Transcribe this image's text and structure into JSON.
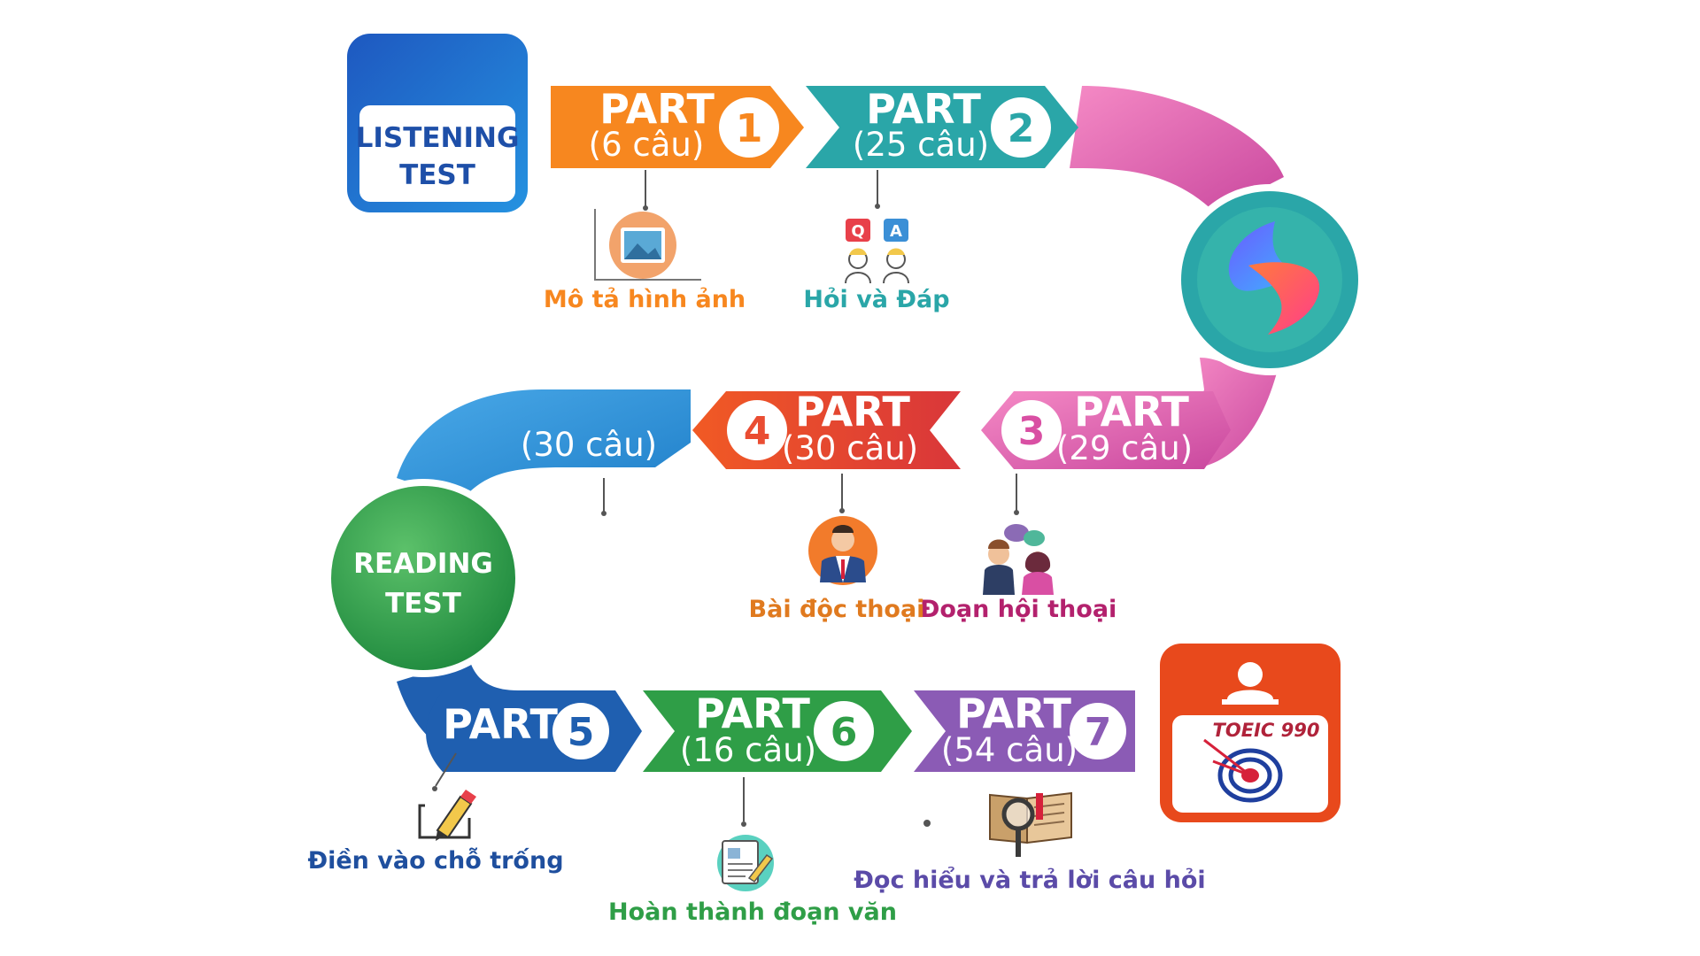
{
  "listening_badge": {
    "line1": "LISTENING",
    "line2": "TEST"
  },
  "reading_badge": {
    "line1": "READING",
    "line2": "TEST"
  },
  "toeic_badge": {
    "label": "TOEIC 990"
  },
  "parts": [
    {
      "title": "PART",
      "number": "1",
      "count": "(6 câu)",
      "caption": "Mô tả hình ảnh",
      "color": "#f7871f",
      "icon": "picture-icon"
    },
    {
      "title": "PART",
      "number": "2",
      "count": "(25 câu)",
      "caption": "Hỏi và Đáp",
      "color": "#2aa6a8",
      "icon": "question-answer-icon"
    },
    {
      "title": "PART",
      "number": "3",
      "count": "(29 câu)",
      "caption": "Đoạn hội thoại",
      "color": "#d94fa3",
      "icon": "conversation-icon"
    },
    {
      "title": "PART",
      "number": "4",
      "count": "(30 câu)",
      "caption": "Bài độc thoại",
      "color": "#ea4d32",
      "icon": "speaker-icon"
    },
    {
      "title": "PART",
      "number": "5",
      "count": "(30 câu)",
      "caption": "Điền vào chỗ trống",
      "color": "#1f5fb0",
      "icon": "pencil-icon"
    },
    {
      "title": "PART",
      "number": "6",
      "count": "(16 câu)",
      "caption": "Hoàn thành đoạn văn",
      "color": "#2f9e47",
      "icon": "document-icon"
    },
    {
      "title": "PART",
      "number": "7",
      "count": "(54 câu)",
      "caption": "Đọc hiểu và trả lời câu hỏi",
      "color": "#8b5bb5",
      "icon": "magnifier-book-icon"
    }
  ],
  "colors": {
    "listening": "#1e6fd0",
    "reading": "#2f9e47",
    "toeic": "#e8491c",
    "logo_ring": "#2aa6a8"
  }
}
